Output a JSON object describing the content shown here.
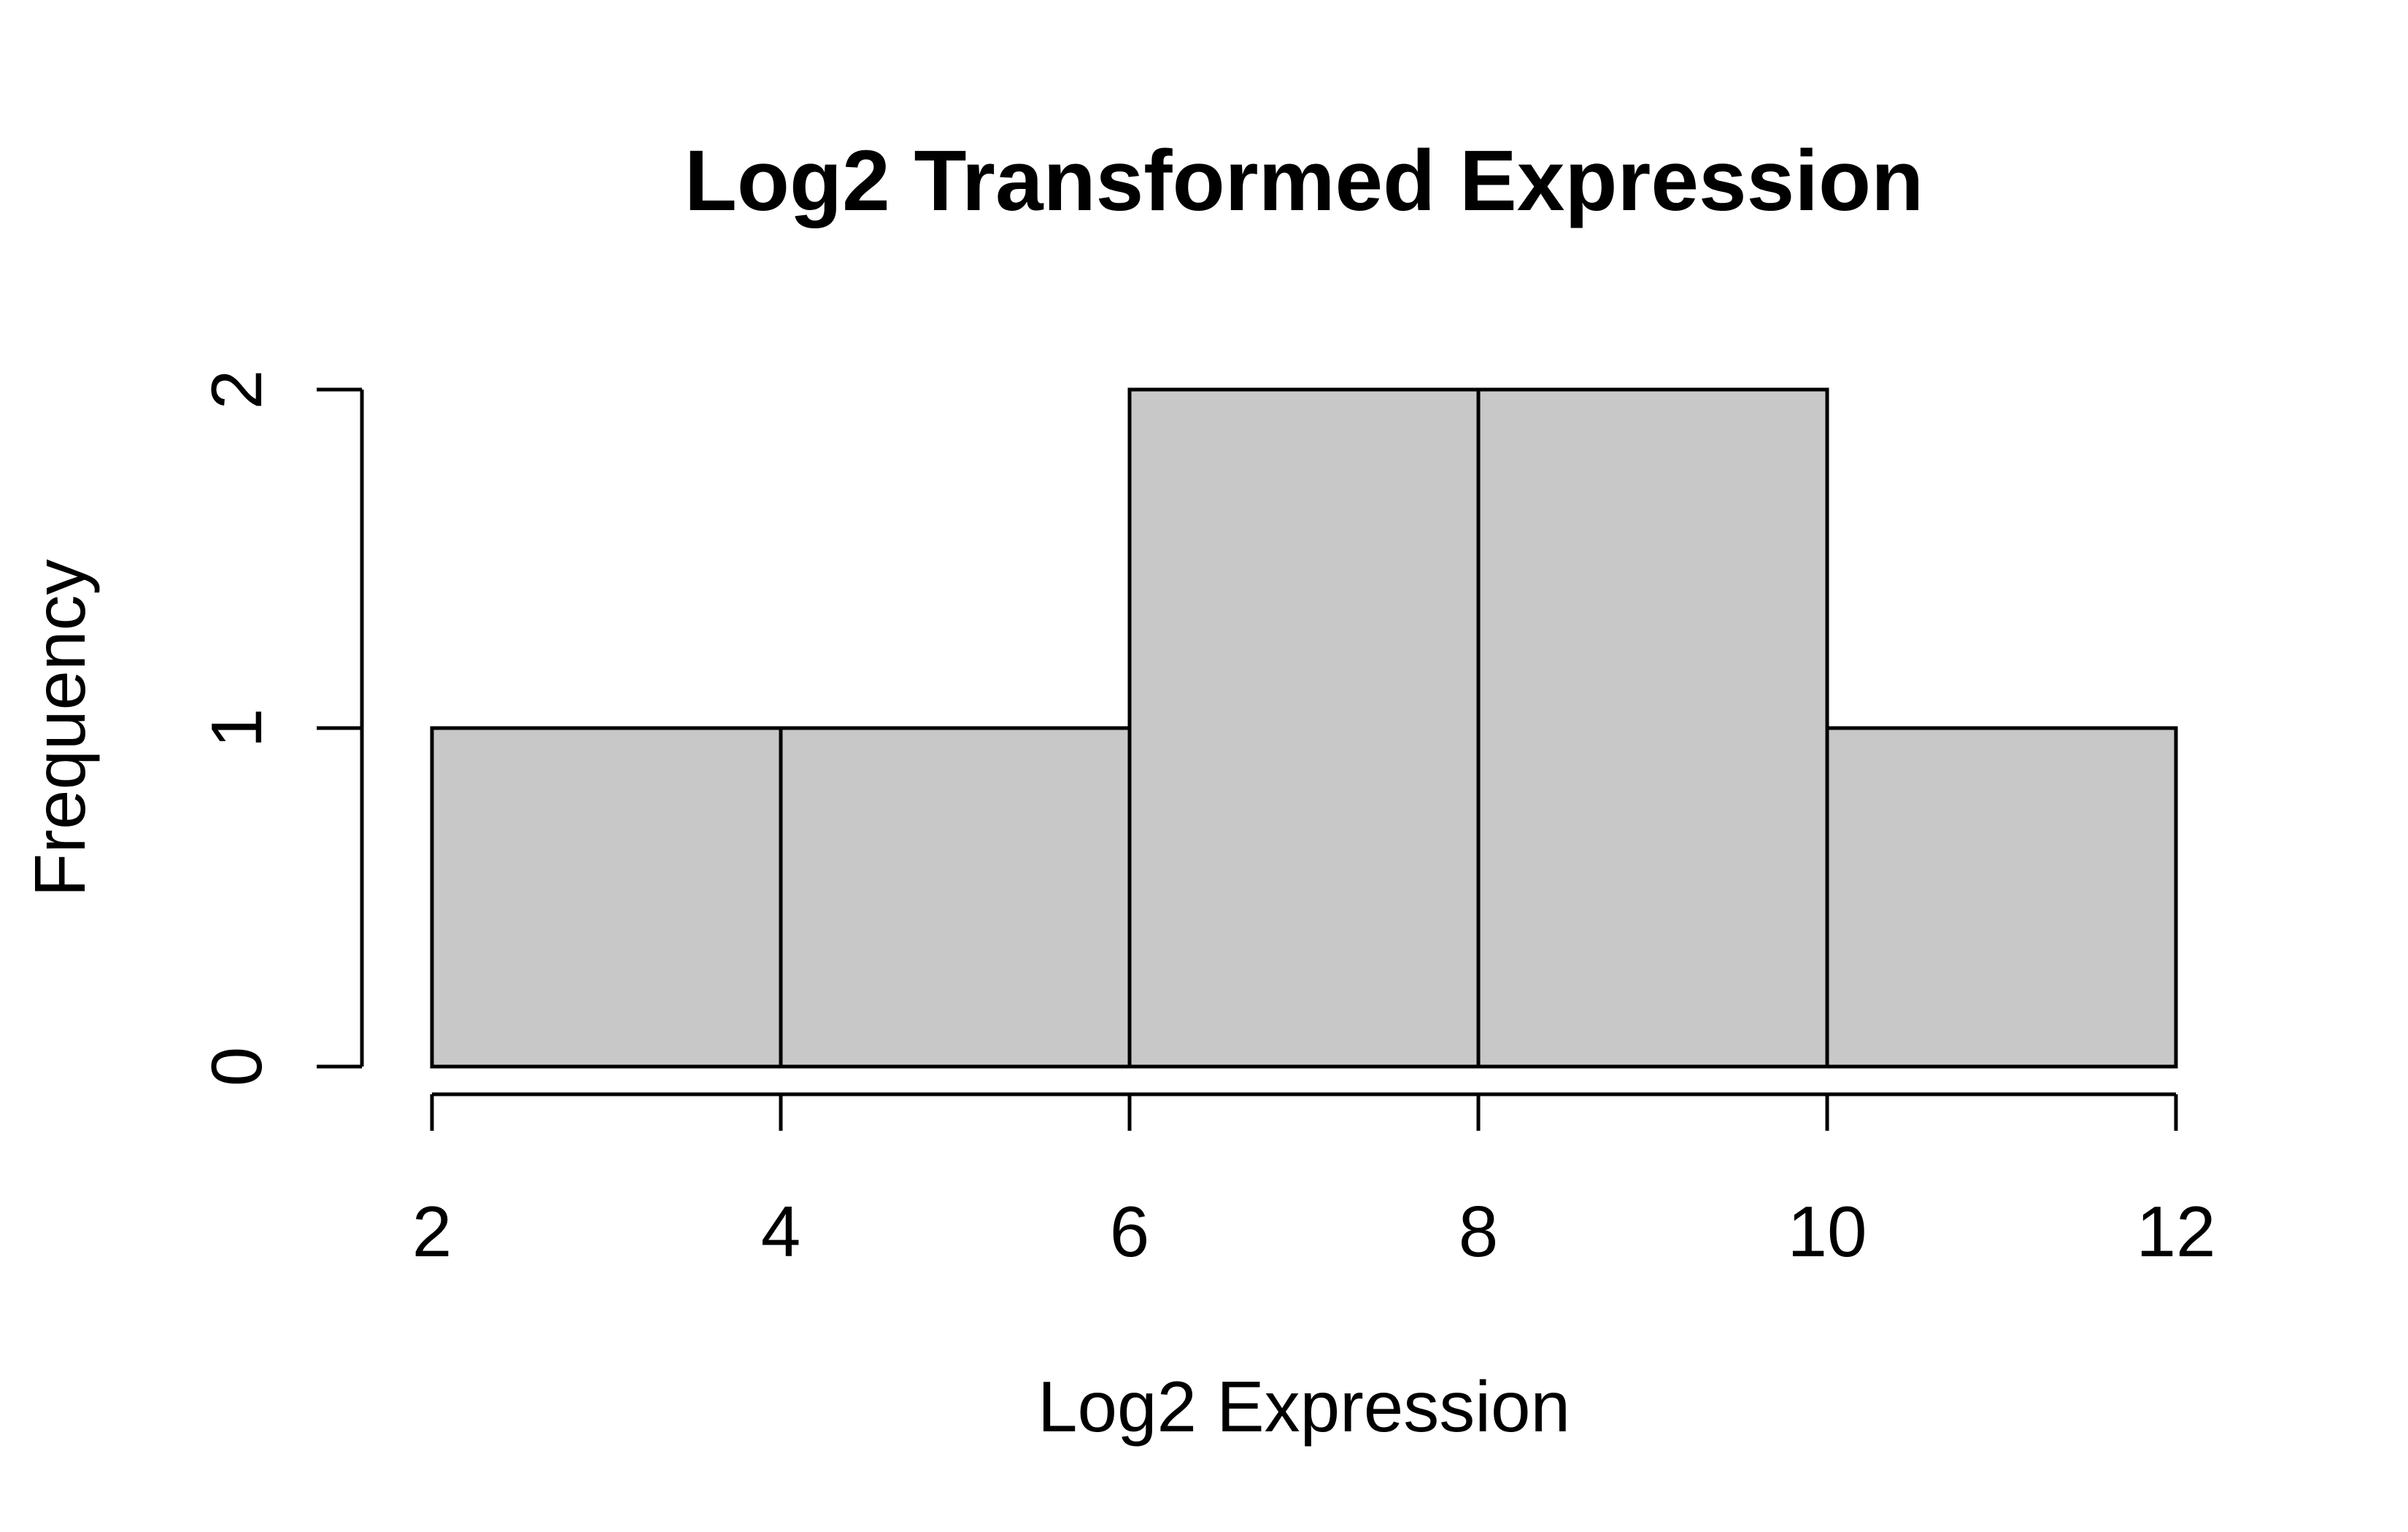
{
  "chart_data": {
    "type": "bar",
    "title": "Log2 Transformed Expression",
    "xlabel": "Log2 Expression",
    "ylabel": "Frequency",
    "bins": [
      {
        "start": 2,
        "end": 4,
        "count": 1
      },
      {
        "start": 4,
        "end": 6,
        "count": 1
      },
      {
        "start": 6,
        "end": 8,
        "count": 2
      },
      {
        "start": 8,
        "end": 10,
        "count": 2
      },
      {
        "start": 10,
        "end": 12,
        "count": 1
      }
    ],
    "xlim": [
      2,
      12
    ],
    "ylim": [
      0,
      2
    ],
    "x_ticks": [
      2,
      4,
      6,
      8,
      10,
      12
    ],
    "y_ticks": [
      0,
      1,
      2
    ],
    "grid": false,
    "bar_color": "#c8c8c8",
    "edge_color": "#000000"
  }
}
